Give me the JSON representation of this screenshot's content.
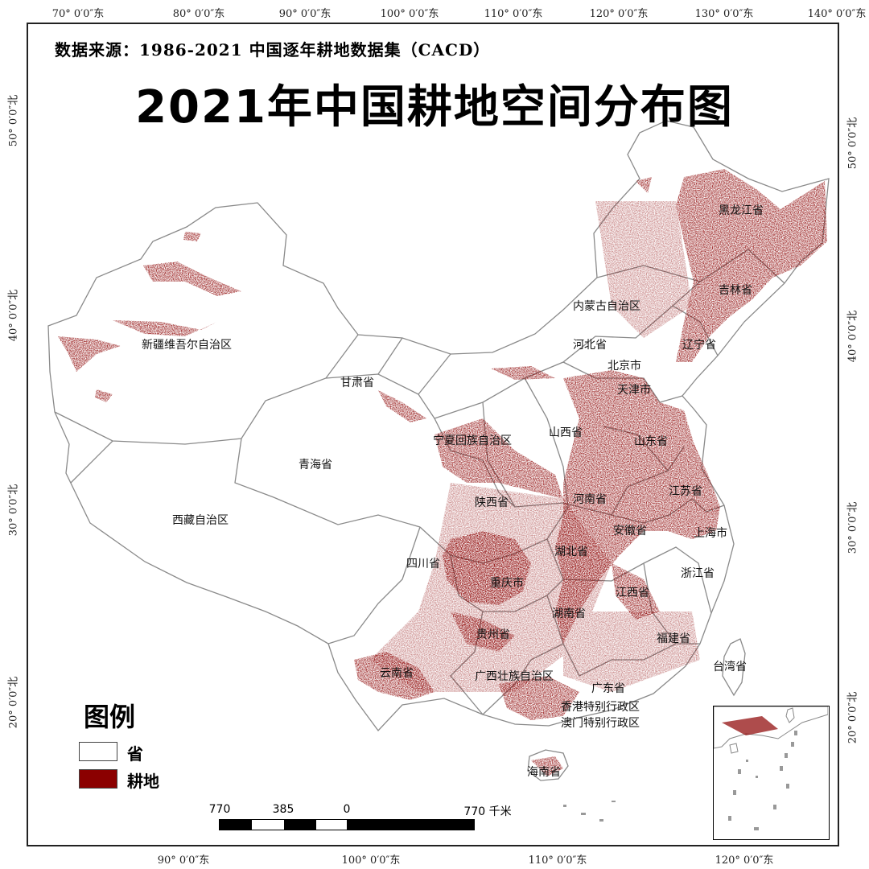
{
  "map": {
    "source_text": "数据来源：1986-2021 中国逐年耕地数据集（CACD）",
    "title": "2021年中国耕地空间分布图",
    "ticks": {
      "top": [
        "70° 0′0″东",
        "80° 0′0″东",
        "90° 0′0″东",
        "100° 0′0″东",
        "110° 0′0″东",
        "120° 0′0″东",
        "130° 0′0″东",
        "140° 0′0″东"
      ],
      "bottom": [
        "90° 0′0″东",
        "100° 0′0″东",
        "110° 0′0″东",
        "120° 0′0″东"
      ],
      "left": [
        "50° 0′0″北",
        "40° 0′0″北",
        "30° 0′0″北",
        "20° 0′0″北"
      ],
      "right": [
        "50° 0′0″北",
        "40° 0′0″北",
        "30° 0′0″北",
        "20° 0′0″北"
      ]
    },
    "provinces": {
      "heilongjiang": "黑龙江省",
      "jilin": "吉林省",
      "liaoning": "辽宁省",
      "neimenggu": "内蒙古自治区",
      "hebei": "河北省",
      "beijing": "北京市",
      "tianjin": "天津市",
      "xinjiang": "新疆维吾尔自治区",
      "gansu": "甘肃省",
      "ningxia": "宁夏回族自治区",
      "shanxi": "山西省",
      "shandong": "山东省",
      "qinghai": "青海省",
      "shaanxi": "陕西省",
      "henan": "河南省",
      "jiangsu": "江苏省",
      "xizang": "西藏自治区",
      "anhui": "安徽省",
      "shanghai": "上海市",
      "sichuan": "四川省",
      "hubei": "湖北省",
      "chongqing": "重庆市",
      "zhejiang": "浙江省",
      "jiangxi": "江西省",
      "hunan": "湖南省",
      "guizhou": "贵州省",
      "fujian": "福建省",
      "taiwan": "台湾省",
      "yunnan": "云南省",
      "guangxi": "广西壮族自治区",
      "guangdong": "广东省",
      "hongkong": "香港特别行政区",
      "macao": "澳门特别行政区",
      "hainan": "海南省"
    },
    "legend": {
      "title": "图例",
      "items": [
        {
          "label": "省",
          "color": "#ffffff"
        },
        {
          "label": "耕地",
          "color": "#8b0000"
        }
      ]
    },
    "scale": {
      "labels": [
        "770",
        "385",
        "0",
        "770 千米"
      ]
    },
    "colors": {
      "cropland": "#8b0000",
      "boundary": "#888888"
    }
  }
}
